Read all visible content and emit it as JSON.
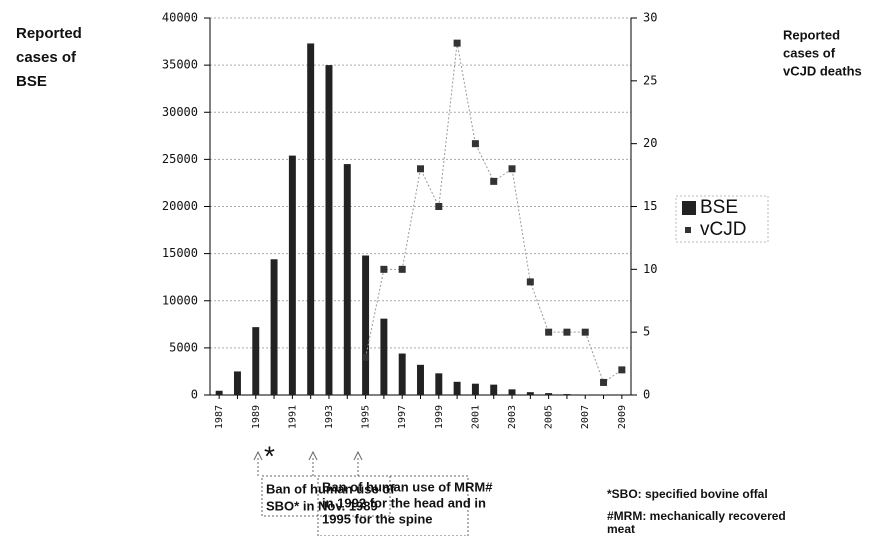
{
  "chart_data": {
    "type": "bar_line",
    "y_label": [
      "Reported",
      "cases of",
      "BSE"
    ],
    "y2_label": [
      "Reported",
      "cases of",
      "vCJD deaths"
    ],
    "categories": [
      "1987",
      null,
      "1989",
      null,
      "1991",
      null,
      "1993",
      null,
      "1995",
      null,
      "1997",
      null,
      "1999",
      null,
      "2001",
      null,
      "2003",
      null,
      "2005",
      null,
      "2007",
      null,
      "2009"
    ],
    "series": [
      {
        "name": "BSE",
        "color": "#222222",
        "values": [
          450,
          2500,
          7200,
          14400,
          25400,
          37300,
          35000,
          24500,
          14800,
          8100,
          4400,
          3200,
          2300,
          1400,
          1200,
          1100,
          600,
          300,
          200,
          100,
          50,
          30,
          10
        ]
      },
      {
        "name": "vCJD",
        "color": "#333333",
        "axis": "y2",
        "values": [
          null,
          null,
          null,
          null,
          null,
          null,
          null,
          null,
          3,
          10,
          10,
          18,
          15,
          28,
          20,
          17,
          18,
          9,
          5,
          5,
          5,
          1,
          2
        ]
      }
    ],
    "ylim": [
      0,
      40000
    ],
    "yticks": [
      0,
      5000,
      10000,
      15000,
      20000,
      25000,
      30000,
      35000,
      40000
    ],
    "y2lim": [
      0,
      30
    ],
    "y2ticks": [
      0,
      5,
      10,
      15,
      20,
      25,
      30
    ],
    "grid": true,
    "legend": "right",
    "annotations": {
      "star": "*",
      "sbo_ban": [
        "Ban of human use of",
        "SBO* in Nov. 1989"
      ],
      "mrm_ban": [
        "Ban of human use of MRM#",
        "in 1992 for the head and in",
        "1995 for the spine"
      ],
      "footnotes": [
        "*SBO: specified bovine offal",
        "#MRM: mechanically recovered",
        "meat"
      ]
    }
  }
}
